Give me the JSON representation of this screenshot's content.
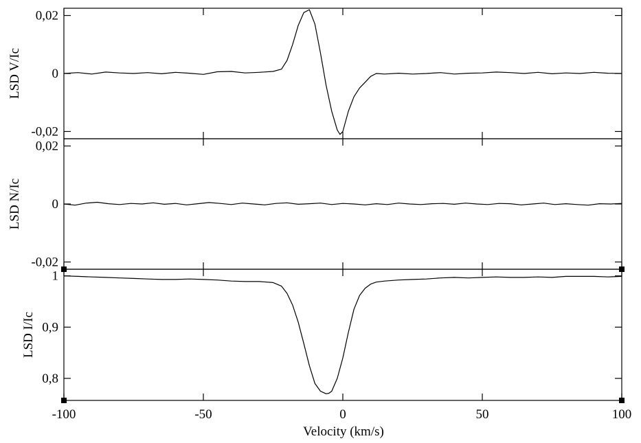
{
  "chart_data": {
    "type": "line",
    "xlabel": "Velocity (km/s)",
    "xlim": [
      -100,
      100
    ],
    "xticks": [
      -100,
      -50,
      0,
      50,
      100
    ],
    "xtick_labels": [
      "-100",
      "-50",
      "0",
      "50",
      "100"
    ],
    "panels": [
      {
        "id": "V",
        "ylabel": "LSD V/Ic",
        "ylim": [
          -0.0225,
          0.0225
        ],
        "yticks": [
          -0.02,
          0,
          0.02
        ],
        "ytick_labels": [
          "-0,02",
          "0",
          "0,02"
        ],
        "series": [
          {
            "x": [
              -100,
              -95,
              -90,
              -85,
              -80,
              -75,
              -70,
              -65,
              -60,
              -55,
              -50,
              -45,
              -40,
              -35,
              -30,
              -25,
              -22,
              -20,
              -18,
              -16,
              -14,
              -12,
              -10,
              -8,
              -6,
              -4,
              -2,
              -1,
              0,
              2,
              4,
              6,
              8,
              10,
              12,
              15,
              20,
              25,
              30,
              35,
              40,
              45,
              50,
              55,
              60,
              65,
              70,
              75,
              80,
              85,
              90,
              95,
              100
            ],
            "y": [
              0.0,
              0.0003,
              -0.0002,
              0.0005,
              0.0002,
              0.0,
              0.0003,
              -0.0001,
              0.0004,
              0.0001,
              -0.0003,
              0.0006,
              0.0007,
              0.0002,
              0.0004,
              0.0007,
              0.0015,
              0.0045,
              0.01,
              0.0165,
              0.021,
              0.022,
              0.017,
              0.007,
              -0.004,
              -0.013,
              -0.0195,
              -0.021,
              -0.02,
              -0.013,
              -0.008,
              -0.005,
              -0.003,
              -0.001,
              0.0,
              -0.0002,
              0.0001,
              -0.0002,
              0.0,
              0.0003,
              -0.0002,
              0.0001,
              0.0002,
              0.0005,
              0.0003,
              0.0,
              0.0004,
              -0.0001,
              0.0002,
              0.0,
              0.0004,
              0.0001,
              0.0
            ]
          }
        ]
      },
      {
        "id": "N",
        "ylabel": "LSD N/Ic",
        "ylim": [
          -0.0225,
          0.0225
        ],
        "yticks": [
          -0.02,
          0,
          0.02
        ],
        "ytick_labels": [
          "-0,02",
          "0",
          "0,02"
        ],
        "series": [
          {
            "x": [
              -100,
              -96,
              -92,
              -88,
              -84,
              -80,
              -76,
              -72,
              -68,
              -64,
              -60,
              -56,
              -52,
              -48,
              -44,
              -40,
              -36,
              -32,
              -28,
              -24,
              -20,
              -16,
              -12,
              -8,
              -4,
              0,
              4,
              8,
              12,
              16,
              20,
              24,
              28,
              32,
              36,
              40,
              44,
              48,
              52,
              56,
              60,
              64,
              68,
              72,
              76,
              80,
              84,
              88,
              92,
              96,
              100
            ],
            "y": [
              0.0,
              -0.0004,
              0.0003,
              0.0006,
              0.0001,
              -0.0002,
              0.0002,
              0.0,
              0.0004,
              -0.0001,
              0.0002,
              -0.0003,
              0.0001,
              0.0005,
              0.0002,
              -0.0002,
              0.0003,
              0.0,
              -0.0003,
              0.0002,
              0.0004,
              -0.0001,
              0.0001,
              0.0003,
              -0.0002,
              0.0002,
              0.0,
              -0.0003,
              0.0001,
              -0.0002,
              0.0003,
              0.0,
              -0.0002,
              0.0001,
              0.0002,
              -0.0001,
              0.0003,
              0.0,
              -0.0002,
              0.0002,
              0.0001,
              -0.0003,
              0.0,
              0.0003,
              -0.0002,
              0.0001,
              -0.0002,
              -0.0004,
              0.0001,
              0.0,
              0.0002
            ]
          }
        ]
      },
      {
        "id": "I",
        "ylabel": "LSD I/Ic",
        "ylim": [
          0.757,
          1.013
        ],
        "yticks": [
          0.8,
          0.9,
          1.0
        ],
        "ytick_labels": [
          "0,8",
          "0,9",
          "1"
        ],
        "series": [
          {
            "x": [
              -100,
              -95,
              -90,
              -85,
              -80,
              -75,
              -70,
              -65,
              -60,
              -55,
              -50,
              -45,
              -40,
              -35,
              -30,
              -25,
              -22,
              -20,
              -18,
              -16,
              -14,
              -12,
              -10,
              -8,
              -6,
              -5,
              -4,
              -2,
              0,
              2,
              4,
              6,
              8,
              10,
              12,
              15,
              20,
              25,
              30,
              35,
              40,
              45,
              50,
              55,
              60,
              65,
              70,
              75,
              80,
              85,
              90,
              95,
              100
            ],
            "y": [
              1.0,
              0.999,
              0.998,
              0.997,
              0.996,
              0.995,
              0.994,
              0.993,
              0.993,
              0.994,
              0.993,
              0.992,
              0.99,
              0.989,
              0.989,
              0.987,
              0.98,
              0.966,
              0.943,
              0.91,
              0.868,
              0.825,
              0.79,
              0.775,
              0.77,
              0.771,
              0.775,
              0.8,
              0.84,
              0.89,
              0.935,
              0.962,
              0.976,
              0.984,
              0.988,
              0.99,
              0.992,
              0.993,
              0.994,
              0.996,
              0.997,
              0.996,
              0.997,
              0.998,
              0.997,
              0.997,
              0.998,
              0.997,
              0.999,
              0.999,
              0.999,
              0.998,
              0.999
            ]
          }
        ]
      }
    ]
  }
}
